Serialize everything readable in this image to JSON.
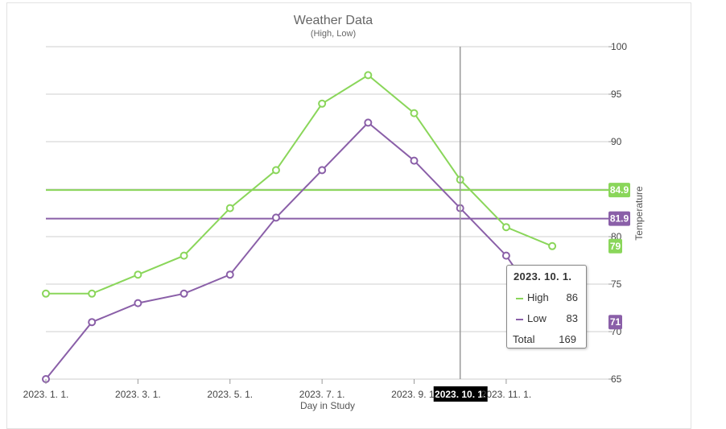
{
  "chart_data": {
    "type": "line",
    "title": "Weather Data",
    "subtitle": "(High, Low)",
    "xlabel": "Day in Study",
    "ylabel": "Temperature",
    "ylim": [
      65,
      100
    ],
    "y_ticks": [
      65,
      70,
      75,
      80,
      85,
      90,
      95,
      100
    ],
    "x": [
      "2023-01-01",
      "2023-02-01",
      "2023-03-01",
      "2023-04-01",
      "2023-05-01",
      "2023-06-01",
      "2023-07-01",
      "2023-08-01",
      "2023-09-01",
      "2023-10-01",
      "2023-11-01",
      "2023-12-01"
    ],
    "x_tick_labels": [
      "2023. 1. 1.",
      "2023. 3. 1.",
      "2023. 5. 1.",
      "2023. 7. 1.",
      "2023. 9. 1.",
      "2023. 11. 1."
    ],
    "x_tick_index": [
      0,
      2,
      4,
      6,
      8,
      10
    ],
    "series": [
      {
        "name": "High",
        "color": "#8ad65a",
        "values": [
          74,
          74,
          76,
          78,
          83,
          87,
          94,
          97,
          93,
          86,
          81,
          79
        ]
      },
      {
        "name": "Low",
        "color": "#8a5fa8",
        "values": [
          65,
          71,
          73,
          74,
          76,
          82,
          87,
          92,
          88,
          83,
          78,
          71
        ]
      }
    ],
    "reference_lines": [
      {
        "series": "High",
        "value": 84.9,
        "label": "84.9",
        "color": "#8ad65a"
      },
      {
        "series": "Low",
        "value": 81.9,
        "label": "81.9",
        "color": "#8a5fa8"
      }
    ],
    "end_labels": [
      {
        "series": "High",
        "label": "79",
        "color": "#8ad65a"
      },
      {
        "series": "Low",
        "label": "71",
        "color": "#8a5fa8"
      }
    ],
    "grid": true,
    "legend": "none",
    "crosshair": {
      "index": 9,
      "label": "2023. 10. 1."
    }
  },
  "tooltip": {
    "title": "2023. 10. 1.",
    "rows": [
      {
        "name": "High",
        "value": "86",
        "color": "#8ad65a"
      },
      {
        "name": "Low",
        "value": "83",
        "color": "#8a5fa8"
      }
    ],
    "total_label": "Total",
    "total_value": "169"
  }
}
